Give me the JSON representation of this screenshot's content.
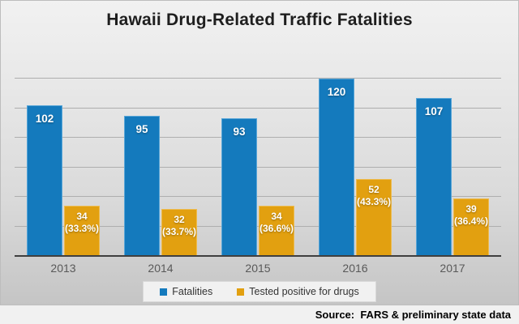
{
  "title": "Hawaii Drug-Related Traffic Fatalities",
  "source": "Source:  FARS & preliminary state data",
  "legend": {
    "items": [
      {
        "label": "Fatalities",
        "color": "#147ABD"
      },
      {
        "label": "Tested positive for drugs",
        "color": "#E2A010"
      }
    ]
  },
  "colors": {
    "fatalities_bar": "#147ABD",
    "drugs_bar": "#E2A010",
    "gridline": "#aeaeae",
    "axis_line": "#3f3f3f",
    "slide_background_top": "#f1f1f1",
    "slide_background_bottom": "#c5c5c5"
  },
  "chart_data": {
    "type": "bar",
    "title": "Hawaii Drug-Related Traffic Fatalities",
    "categories": [
      "2013",
      "2014",
      "2015",
      "2016",
      "2017"
    ],
    "series": [
      {
        "name": "Fatalities",
        "color": "#147ABD",
        "values": [
          102,
          95,
          93,
          120,
          107
        ],
        "data_labels": [
          "102",
          "95",
          "93",
          "120",
          "107"
        ]
      },
      {
        "name": "Tested positive for drugs",
        "color": "#E2A010",
        "values": [
          34,
          32,
          34,
          52,
          39
        ],
        "data_labels": [
          "34",
          "32",
          "34",
          "52",
          "39"
        ],
        "percent_labels": [
          "(33.3%)",
          "(33.7%)",
          "(36.6%)",
          "(43.3%)",
          "(36.4%)"
        ]
      }
    ],
    "xlabel": "",
    "ylabel": "",
    "ylim": [
      0,
      120
    ],
    "grid_step": 20,
    "grid": true,
    "y_axis_labels_visible": false,
    "legend_position": "bottom"
  }
}
